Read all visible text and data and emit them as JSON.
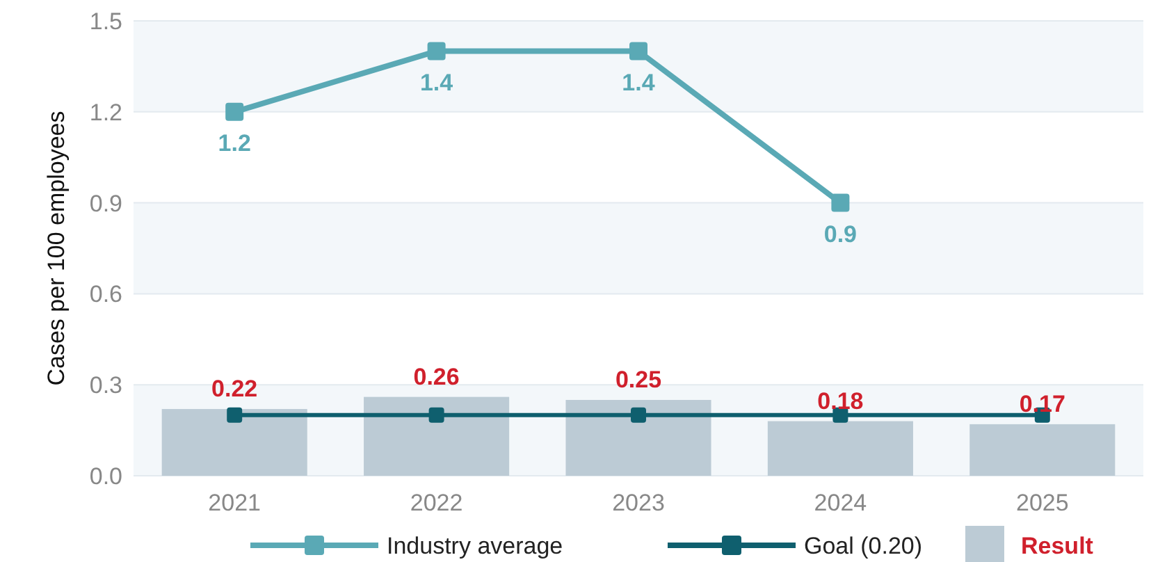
{
  "chart_data": {
    "type": "bar",
    "ylabel": "Cases per 100 employees",
    "categories": [
      "2021",
      "2022",
      "2023",
      "2024",
      "2025"
    ],
    "series": [
      {
        "name": "Result",
        "color": "#bccbd5",
        "values": [
          0.22,
          0.26,
          0.25,
          0.18,
          0.17
        ],
        "value_labels": [
          "0.22",
          "0.26",
          "0.25",
          "0.18",
          "0.17"
        ]
      },
      {
        "name": "Industry average",
        "type": "line",
        "color": "#5aa9b5",
        "values": [
          1.2,
          1.4,
          1.4,
          0.9,
          null
        ],
        "value_labels": [
          "1.2",
          "1.4",
          "1.4",
          "0.9",
          null
        ]
      },
      {
        "name": "Goal (0.20)",
        "type": "line",
        "color": "#0f5f6e",
        "values": [
          0.2,
          0.2,
          0.2,
          0.2,
          0.2
        ]
      }
    ],
    "ylim": [
      0,
      1.5
    ],
    "yticks": [
      {
        "value": 0,
        "label": "0.0"
      },
      0.3,
      0.6,
      0.9,
      1.2,
      1.5
    ],
    "grid": "y",
    "legend": "bottom",
    "marker": "square",
    "line_style": "solid"
  }
}
